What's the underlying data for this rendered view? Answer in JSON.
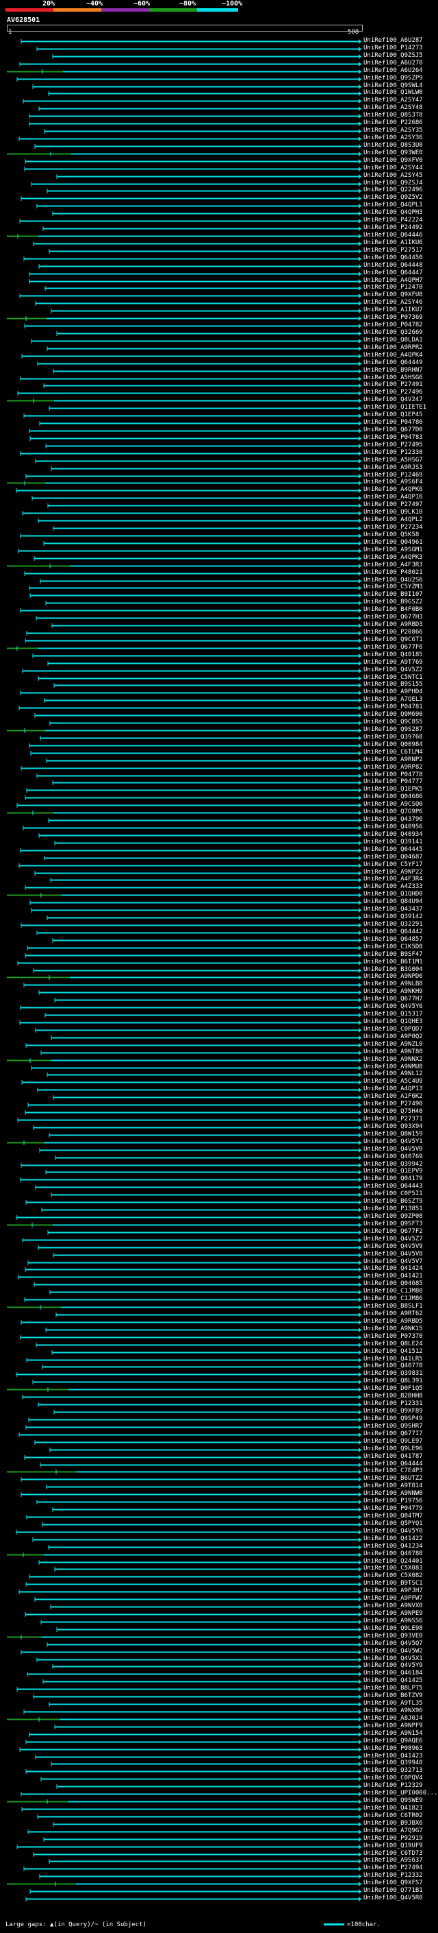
{
  "legend": {
    "labels": [
      "20%",
      "~40%",
      "~60%",
      "~80%",
      "~100%"
    ],
    "colors": [
      "#e8202a",
      "#f08020",
      "#8c2da8",
      "#1e9a1e",
      "#00e0e8"
    ]
  },
  "query": {
    "name": "AV628501",
    "ruler_start": "1",
    "ruler_end": "508"
  },
  "hits": [
    "UniRef100_A6U287",
    "UniRef100_P14273",
    "UniRef100_Q9ZSJ5",
    "UniRef100_A6U270",
    "UniRef100_A6U264",
    "UniRef100_Q9SZP9",
    "UniRef100_Q9SWL4",
    "UniRef100_Q1WLW0",
    "UniRef100_A2SY47",
    "UniRef100_A2SY48",
    "UniRef100_Q8S3T8",
    "UniRef100_P22686",
    "UniRef100_A2SY35",
    "UniRef100_A2SY36",
    "UniRef100_Q8S3U0",
    "UniRef100_Q93WE0",
    "UniRef100_Q9XFV0",
    "UniRef100_A2SY44",
    "UniRef100_A2SY45",
    "UniRef100_Q9ZSJ4",
    "UniRef100_Q22496",
    "UniRef100_Q9Z5V2",
    "UniRef100_Q4QPL1",
    "UniRef100_Q4QPH3",
    "UniRef100_P42224",
    "UniRef100_P24492",
    "UniRef100_Q64446",
    "UniRef100_A1IKU6",
    "UniRef100_P27517",
    "UniRef100_Q64450",
    "UniRef100_Q64448",
    "UniRef100_Q64447",
    "UniRef100_A4QPH7",
    "UniRef100_P12470",
    "UniRef100_Q9XFU8",
    "UniRef100_A2SY46",
    "UniRef100_A1IKU7",
    "UniRef100_P07369",
    "UniRef100_P04782",
    "UniRef100_Q32669",
    "UniRef100_Q8LDA1",
    "UniRef100_A9RPR2",
    "UniRef100_A4QPK4",
    "UniRef100_Q64449",
    "UniRef100_B9RHN7",
    "UniRef100_A5HSG6",
    "UniRef100_P27491",
    "UniRef100_P27496",
    "UniRef100_Q4V247",
    "UniRef100_Q1IETE1",
    "UniRef100_Q1EP45",
    "UniRef100_P04780",
    "UniRef100_Q677D0",
    "UniRef100_P04783",
    "UniRef100_P27495",
    "UniRef100_P12330",
    "UniRef100_A5HSG7",
    "UniRef100_A9RJS3",
    "UniRef100_P12469",
    "UniRef100_A9S6F4",
    "UniRef100_A4QPK6",
    "UniRef100_A4QP16",
    "UniRef100_P27497",
    "UniRef100_Q9LK10",
    "UniRef100_A4QPL2",
    "UniRef100_P27234",
    "UniRef100_Q5K58",
    "UniRef100_Q04961",
    "UniRef100_A9SGM1",
    "UniRef100_A4QPK3",
    "UniRef100_A4F3R3",
    "UniRef100_P48021",
    "UniRef100_Q4U2S6",
    "UniRef100_C5YZM3",
    "UniRef100_B9I107",
    "UniRef100_B9GSZ2",
    "UniRef100_B4F0B0",
    "UniRef100_Q677H3",
    "UniRef100_A9RBD3",
    "UniRef100_P20866",
    "UniRef100_Q9C6T1",
    "UniRef100_Q677F6",
    "UniRef100_Q40185",
    "UniRef100_A9T769",
    "UniRef100_Q4V5Z2",
    "UniRef100_C5NTC1",
    "UniRef100_B9S155",
    "UniRef100_A9PHD4",
    "UniRef100_A7QEL3",
    "UniRef100_P04781",
    "UniRef100_Q9M690",
    "UniRef100_Q9C8S5",
    "UniRef100_Q9S287",
    "UniRef100_Q39768",
    "UniRef100_Q00984",
    "UniRef100_C6TLM4",
    "UniRef100_A9RNP2",
    "UniRef100_A9RP82",
    "UniRef100_P04778",
    "UniRef100_P04777",
    "UniRef100_Q1EPK5",
    "UniRef100_Q04686",
    "UniRef100_A9CSQ0",
    "UniRef100_Q7G9P6",
    "UniRef100_Q43796",
    "UniRef100_Q40956",
    "UniRef100_Q40934",
    "UniRef100_Q39141",
    "UniRef100_Q64445",
    "UniRef100_Q04687",
    "UniRef100_C5YF17",
    "UniRef100_A9NP22",
    "UniRef100_A4F3R4",
    "UniRef100_A4Z333",
    "UniRef100_Q1QHD0",
    "UniRef100_Q84U94",
    "UniRef100_Q43437",
    "UniRef100_Q39142",
    "UniRef100_Q32291",
    "UniRef100_Q64442",
    "UniRef100_Q64857",
    "UniRef100_C1K5D0",
    "UniRef100_B9SF47",
    "UniRef100_B6T1M1",
    "UniRef100_B3G004",
    "UniRef100_A9NPD6",
    "UniRef100_A9NLB8",
    "UniRef100_A9NKH9",
    "UniRef100_Q677H7",
    "UniRef100_Q4V5Y6",
    "UniRef100_Q15317",
    "UniRef100_Q1QHE3",
    "UniRef100_C0PQD7",
    "UniRef100_A9P0Q2",
    "UniRef100_A9NZL0",
    "UniRef100_A9NT88",
    "UniRef100_A9NNX2",
    "UniRef100_A9NMU8",
    "UniRef100_A9NL12",
    "UniRef100_A5C4U9",
    "UniRef100_A4QP13",
    "UniRef100_A1F6K2",
    "UniRef100_P27490",
    "UniRef100_Q75H40",
    "UniRef100_P27371",
    "UniRef100_Q93X94",
    "UniRef100_Q8W159",
    "UniRef100_Q4V5Y1",
    "UniRef100_Q4V5V0",
    "UniRef100_Q40769",
    "UniRef100_Q39942",
    "UniRef100_Q1EPV9",
    "UniRef100_Q04179",
    "UniRef100_Q64443",
    "UniRef100_C0P5I1",
    "UniRef100_B6SZT9",
    "UniRef100_P13851",
    "UniRef100_Q9ZP08",
    "UniRef100_Q9SFT3",
    "UniRef100_Q677F2",
    "UniRef100_Q4V5Z7",
    "UniRef100_Q4V5V9",
    "UniRef100_Q4V5V8",
    "UniRef100_Q4V5V7",
    "UniRef100_Q41424",
    "UniRef100_Q41421",
    "UniRef100_Q04685",
    "UniRef100_C1JM80",
    "UniRef100_C1JM86",
    "UniRef100_B8SLF1",
    "UniRef100_A9RT62",
    "UniRef100_A9RBD5",
    "UniRef100_A9NK15",
    "UniRef100_P07370",
    "UniRef100_Q8LE24",
    "UniRef100_Q41512",
    "UniRef100_Q41LR5",
    "UniRef100_Q40770",
    "UniRef100_Q39831",
    "UniRef100_Q8L391",
    "UniRef100_D0F1Q5",
    "UniRef100_B2BHH8",
    "UniRef100_P12331",
    "UniRef100_Q9XF89",
    "UniRef100_Q9SP49",
    "UniRef100_Q9SHR7",
    "UniRef100_Q677I7",
    "UniRef100_Q9LE97",
    "UniRef100_Q9LE96",
    "UniRef100_Q41787",
    "UniRef100_Q64444",
    "UniRef100_C7E4P3",
    "UniRef100_B6UTZ2",
    "UniRef100_A9T814",
    "UniRef100_A9NNW0",
    "UniRef100_P19756",
    "UniRef100_P04779",
    "UniRef100_Q84TM7",
    "UniRef100_Q5PYQ1",
    "UniRef100_Q4V5Y0",
    "UniRef100_Q41422",
    "UniRef100_Q41234",
    "UniRef100_Q40788",
    "UniRef100_Q24401",
    "UniRef100_C5X083",
    "UniRef100_C5X082",
    "UniRef100_B9TSC1",
    "UniRef100_A9PJH7",
    "UniRef100_A9PFW7",
    "UniRef100_A9NVX0",
    "UniRef100_A9NPE9",
    "UniRef100_A9NSS6",
    "UniRef100_Q9LE98",
    "UniRef100_Q93VE0",
    "UniRef100_Q4V5Q7",
    "UniRef100_Q4V5W2",
    "UniRef100_Q4V5X1",
    "UniRef100_Q4V5Y9",
    "UniRef100_Q46184",
    "UniRef100_Q41425",
    "UniRef100_B8LPT5",
    "UniRef100_B6TZV9",
    "UniRef100_A9TL35",
    "UniRef100_A9NX96",
    "UniRef100_A8J0J4",
    "UniRef100_A9NPF9",
    "UniRef100_A9N154",
    "UniRef100_Q9AQE6",
    "UniRef100_P08963",
    "UniRef100_Q41423",
    "UniRef100_Q39940",
    "UniRef100_Q32713",
    "UniRef100_C0PQV4",
    "UniRef100_P12329",
    "UniRef100_UPI0000...",
    "UniRef100_Q9SWE9",
    "UniRef100_Q41823",
    "UniRef100_C6TR02",
    "UniRef100_B9JBX6",
    "UniRef100_A7Q9G7",
    "UniRef100_P92919",
    "UniRef100_Q19UF9",
    "UniRef100_C6TD73",
    "UniRef100_A9S637",
    "UniRef100_P27494",
    "UniRef100_P12332",
    "UniRef100_Q9XFS7",
    "UniRef100_Q771B1",
    "UniRef100_Q4V5R0"
  ],
  "footer": {
    "gap_text": "Large gaps: ▲(in Query)/~ (in Subject)",
    "scale_text": "=100char."
  }
}
